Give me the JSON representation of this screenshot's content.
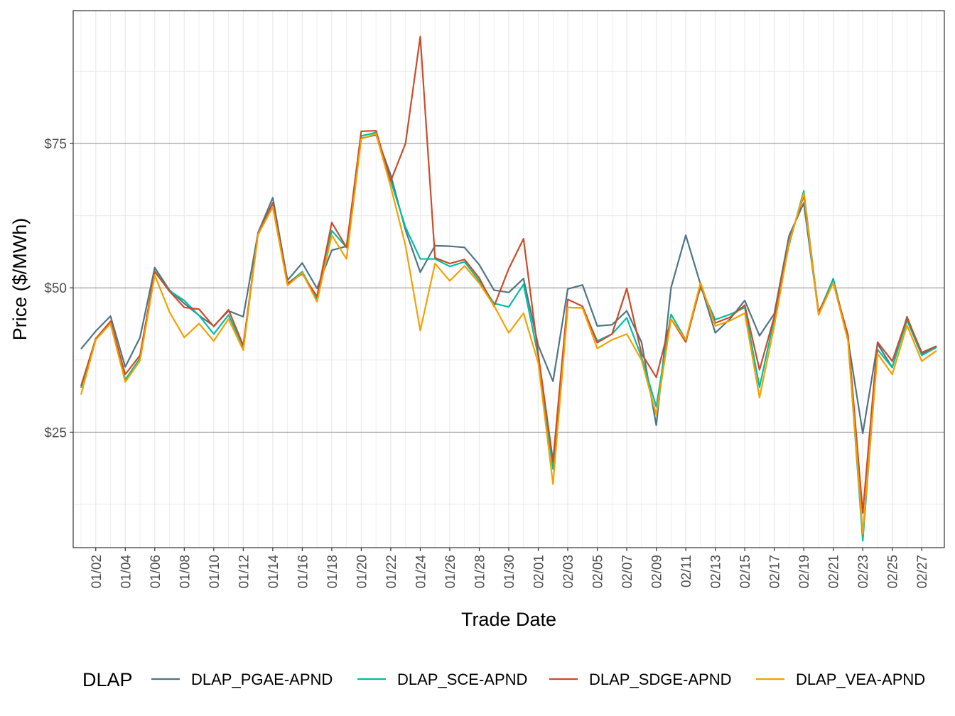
{
  "chart_data": {
    "type": "line",
    "title": "",
    "xlabel": "Trade Date",
    "ylabel": "Price ($/MWh)",
    "ylim": [
      5,
      98
    ],
    "y_ticks": [
      25,
      50,
      75
    ],
    "y_tick_labels": [
      "$25",
      "$50",
      "$75"
    ],
    "x_tick_labels": [
      "01/02",
      "01/04",
      "01/06",
      "01/08",
      "01/10",
      "01/12",
      "01/14",
      "01/16",
      "01/18",
      "01/20",
      "01/22",
      "01/24",
      "01/26",
      "01/28",
      "01/30",
      "02/01",
      "02/03",
      "02/05",
      "02/07",
      "02/09",
      "02/11",
      "02/13",
      "02/15",
      "02/17",
      "02/19",
      "02/21",
      "02/23",
      "02/25",
      "02/27"
    ],
    "x": [
      "01/01",
      "01/02",
      "01/03",
      "01/04",
      "01/05",
      "01/06",
      "01/07",
      "01/08",
      "01/09",
      "01/10",
      "01/11",
      "01/12",
      "01/13",
      "01/14",
      "01/15",
      "01/16",
      "01/17",
      "01/18",
      "01/19",
      "01/20",
      "01/21",
      "01/22",
      "01/23",
      "01/24",
      "01/25",
      "01/26",
      "01/27",
      "01/28",
      "01/29",
      "01/30",
      "01/31",
      "02/01",
      "02/02",
      "02/03",
      "02/04",
      "02/05",
      "02/06",
      "02/07",
      "02/08",
      "02/09",
      "02/10",
      "02/11",
      "02/12",
      "02/13",
      "02/14",
      "02/15",
      "02/16",
      "02/17",
      "02/18",
      "02/19",
      "02/20",
      "02/21",
      "02/22",
      "02/23",
      "02/24",
      "02/25",
      "02/26",
      "02/27",
      "02/28"
    ],
    "grid": true,
    "legend_position": "bottom",
    "legend_title": "DLAP",
    "series": [
      {
        "name": "DLAP_PGAE-APND",
        "color": "#4e7585",
        "values": [
          39.4,
          42.5,
          45.1,
          36.3,
          41.4,
          53.5,
          49.6,
          47.3,
          45.2,
          43.4,
          46.0,
          45.0,
          59.5,
          65.6,
          51.3,
          54.3,
          49.9,
          56.5,
          57.2,
          75.9,
          76.5,
          69.5,
          60.0,
          52.7,
          57.3,
          57.2,
          57.0,
          54.0,
          49.6,
          49.2,
          51.6,
          40.0,
          33.8,
          49.8,
          50.5,
          43.4,
          43.6,
          46.0,
          40.6,
          26.2,
          50.0,
          59.1,
          50.6,
          42.2,
          44.6,
          47.8,
          41.7,
          45.5,
          59.0,
          64.7,
          45.6,
          51.0,
          41.0,
          24.8,
          40.3,
          36.2,
          45.0,
          38.5,
          39.8
        ]
      },
      {
        "name": "DLAP_SCE-APND",
        "color": "#00bfa5",
        "values": [
          32.7,
          41.2,
          43.8,
          34.1,
          37.8,
          52.9,
          49.5,
          47.8,
          45.2,
          42.0,
          45.3,
          39.8,
          59.3,
          64.7,
          50.7,
          52.8,
          48.0,
          59.9,
          57.0,
          76.3,
          76.9,
          68.5,
          60.5,
          55.0,
          55.0,
          53.7,
          54.5,
          51.2,
          47.3,
          46.7,
          50.6,
          38.1,
          18.6,
          46.6,
          46.5,
          40.8,
          42.0,
          44.8,
          38.0,
          29.4,
          45.4,
          41.0,
          50.1,
          44.5,
          45.4,
          46.6,
          32.8,
          44.7,
          57.4,
          66.8,
          45.6,
          51.6,
          41.0,
          6.2,
          39.3,
          36.2,
          44.4,
          38.3,
          39.7
        ]
      },
      {
        "name": "DLAP_SDGE-APND",
        "color": "#cc4b2a",
        "values": [
          33.0,
          41.2,
          44.2,
          35.0,
          38.3,
          52.8,
          49.4,
          46.6,
          46.3,
          43.3,
          46.2,
          40.0,
          59.3,
          64.7,
          50.8,
          52.4,
          48.5,
          61.3,
          57.0,
          77.1,
          77.2,
          68.5,
          75.0,
          93.5,
          55.2,
          54.2,
          54.9,
          51.7,
          46.8,
          53.3,
          58.5,
          38.5,
          20.0,
          48.0,
          46.8,
          40.5,
          42.0,
          49.9,
          38.6,
          34.5,
          44.6,
          40.6,
          50.4,
          43.9,
          44.9,
          47.0,
          35.8,
          45.0,
          58.0,
          66.0,
          45.8,
          50.9,
          41.8,
          11.0,
          40.6,
          37.3,
          44.8,
          38.8,
          39.9
        ]
      },
      {
        "name": "DLAP_VEA-APND",
        "color": "#f5a000",
        "values": [
          31.5,
          41.0,
          43.8,
          33.7,
          37.4,
          52.2,
          45.8,
          41.4,
          43.8,
          40.8,
          44.6,
          39.2,
          59.2,
          64.0,
          50.4,
          52.6,
          47.6,
          59.1,
          55.0,
          75.8,
          76.7,
          67.5,
          57.3,
          42.6,
          54.2,
          51.2,
          53.8,
          50.8,
          46.9,
          42.2,
          45.6,
          37.0,
          16.0,
          46.6,
          46.5,
          39.5,
          41.0,
          42.0,
          37.5,
          28.0,
          44.6,
          41.0,
          50.9,
          43.4,
          44.3,
          45.6,
          31.0,
          43.4,
          57.7,
          66.4,
          45.3,
          50.9,
          40.8,
          7.4,
          38.6,
          35.0,
          43.5,
          37.3,
          39.1
        ]
      }
    ]
  }
}
